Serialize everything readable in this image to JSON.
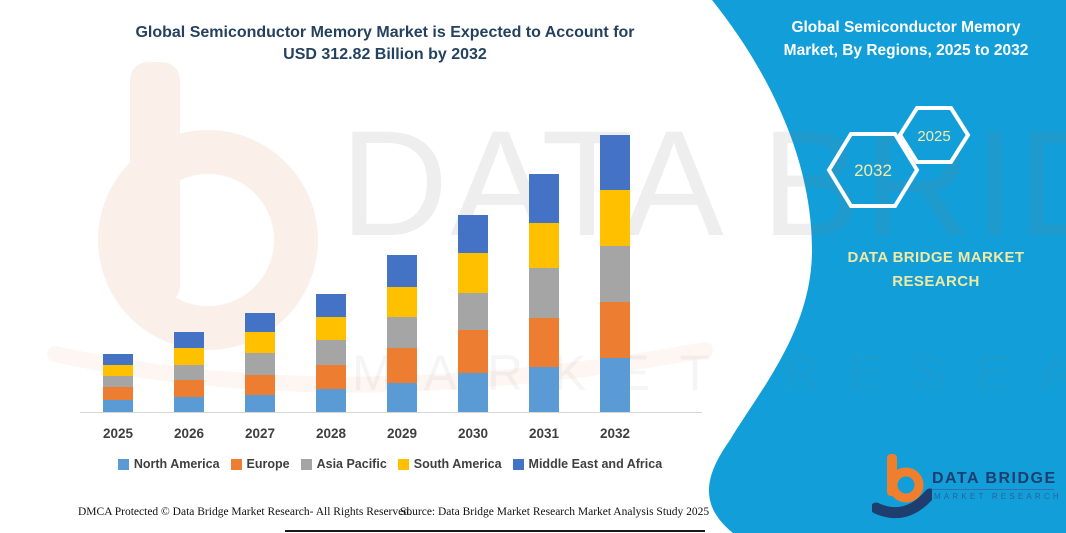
{
  "page": {
    "left_title_line1": "Global Semiconductor Memory Market is Expected to Account for",
    "left_title_line2": "USD 312.82 Billion by 2032",
    "footer_left": "DMCA Protected © Data Bridge Market Research- All Rights Reserved.",
    "footer_right": "Source: Data Bridge Market Research Market Analysis Study 2025",
    "watermark_line1": "DATA BRIDGE",
    "watermark_line2": "MARKET RESEARCH"
  },
  "right_panel": {
    "background_color": "#129fd9",
    "title_line1": "Global Semiconductor Memory",
    "title_line2": "Market, By Regions, 2025 to 2032",
    "hexagon_year_back": "2032",
    "hexagon_year_front": "2025",
    "brand_line1": "DATA BRIDGE MARKET",
    "brand_line2": "RESEARCH",
    "accent_text_color": "#f0ecae"
  },
  "corner_logo": {
    "name": "DATA BRIDGE",
    "subtext": "MARKET RESEARCH",
    "b_color": "#f07f2d",
    "swoosh_color": "#1d3e6e"
  },
  "chart_data": {
    "type": "bar",
    "stacked": true,
    "title": "Global Semiconductor Memory Market is Expected to Account for USD 312.82 Billion by 2032",
    "unit": "USD Billion",
    "categories": [
      "2025",
      "2026",
      "2027",
      "2028",
      "2029",
      "2030",
      "2031",
      "2032"
    ],
    "series": [
      {
        "name": "North America",
        "color": "#5B9BD5",
        "values": [
          13.6,
          16.6,
          19.2,
          26.0,
          33.1,
          44.0,
          51.2,
          60.6
        ]
      },
      {
        "name": "Europe",
        "color": "#ED7D31",
        "values": [
          15.0,
          19.5,
          22.6,
          27.1,
          38.8,
          48.6,
          55.3,
          63.9
        ]
      },
      {
        "name": "Asia Pacific",
        "color": "#A5A5A5",
        "values": [
          12.1,
          16.9,
          25.2,
          28.2,
          35.0,
          42.1,
          56.5,
          62.9
        ]
      },
      {
        "name": "South America",
        "color": "#FFC000",
        "values": [
          12.4,
          18.9,
          23.7,
          26.3,
          34.6,
          44.8,
          50.5,
          63.2
        ]
      },
      {
        "name": "Middle East and Africa",
        "color": "#4472C4",
        "values": [
          12.4,
          18.1,
          21.5,
          25.3,
          35.8,
          42.9,
          55.0,
          62.1
        ]
      }
    ],
    "totals": [
      65.5,
      90.0,
      112.2,
      132.9,
      177.3,
      222.4,
      268.5,
      312.82
    ],
    "x_axis_labels_visible": true,
    "y_axis_visible": false,
    "gridlines": false,
    "legend_position": "bottom"
  }
}
